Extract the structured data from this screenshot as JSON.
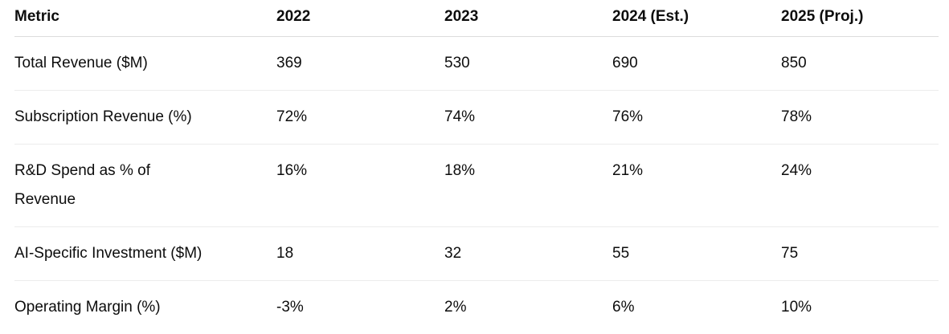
{
  "table": {
    "headers": [
      "Metric",
      "2022",
      "2023",
      "2024 (Est.)",
      "2025 (Proj.)"
    ],
    "rows": [
      [
        "Total Revenue ($M)",
        "369",
        "530",
        "690",
        "850"
      ],
      [
        "Subscription Revenue (%)",
        "72%",
        "74%",
        "76%",
        "78%"
      ],
      [
        "R&D Spend as % of Revenue",
        "16%",
        "18%",
        "21%",
        "24%"
      ],
      [
        "AI-Specific Investment ($M)",
        "18",
        "32",
        "55",
        "75"
      ],
      [
        "Operating Margin (%)",
        "-3%",
        "2%",
        "6%",
        "10%"
      ]
    ]
  }
}
